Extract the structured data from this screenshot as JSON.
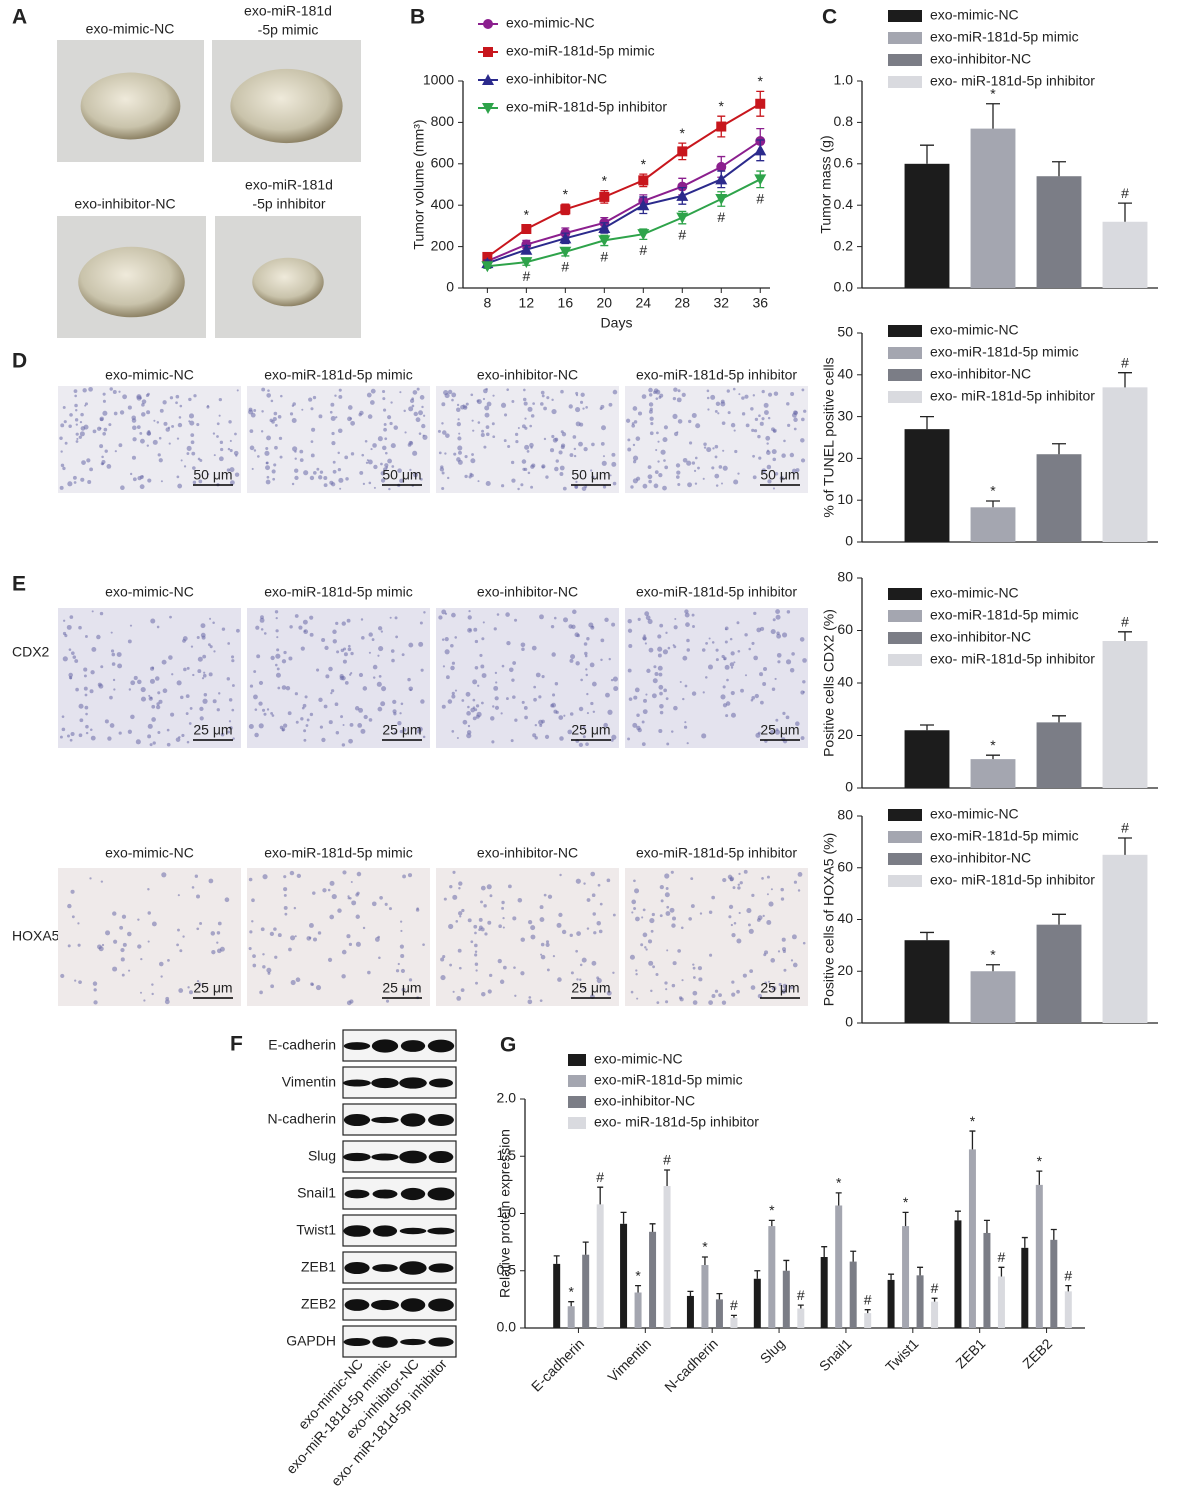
{
  "panels": {
    "labels": [
      "A",
      "B",
      "C",
      "D",
      "E",
      "F",
      "G"
    ]
  },
  "panel_a": {
    "captions": [
      [
        "exo-mimic-NC"
      ],
      [
        "exo-miR-181d",
        "-5p mimic"
      ],
      [
        "exo-inhibitor-NC"
      ],
      [
        "exo-miR-181d",
        "-5p inhibitor"
      ]
    ]
  },
  "panel_d": {
    "captions": [
      "exo-mimic-NC",
      "exo-miR-181d-5p mimic",
      "exo-inhibitor-NC",
      "exo-miR-181d-5p inhibitor"
    ],
    "scale_bars": [
      "50 μm",
      "50 μm",
      "50 μm",
      "50 μm"
    ]
  },
  "panel_e": {
    "rows": [
      {
        "label": "CDX2",
        "captions": [
          "exo-mimic-NC",
          "exo-miR-181d-5p mimic",
          "exo-inhibitor-NC",
          "exo-miR-181d-5p inhibitor"
        ],
        "scale_bars": [
          "25 μm",
          "25 μm",
          "25 μm",
          "25 μm"
        ]
      },
      {
        "label": "HOXA5",
        "captions": [
          "exo-mimic-NC",
          "exo-miR-181d-5p mimic",
          "exo-inhibitor-NC",
          "exo-miR-181d-5p inhibitor"
        ],
        "scale_bars": [
          "25 μm",
          "25 μm",
          "25 μm",
          "25 μm"
        ]
      }
    ]
  },
  "panel_f": {
    "proteins": [
      "E-cadherin",
      "Vimentin",
      "N-cadherin",
      "Slug",
      "Snail1",
      "Twist1",
      "ZEB1",
      "ZEB2",
      "GAPDH"
    ],
    "lanes": [
      "exo-mimic-NC",
      "exo-miR-181d-5p mimic",
      "exo-inhibitor-NC",
      "exo- miR-181d-5p inhibitor"
    ]
  },
  "chart_data": [
    {
      "type": "line",
      "x_label": "Days",
      "y_label": "Tumor volume (mm³)",
      "x": [
        8,
        12,
        16,
        20,
        24,
        28,
        32,
        36
      ],
      "xlim": [
        5.5,
        37
      ],
      "xticks": [
        8,
        12,
        16,
        20,
        24,
        28,
        32,
        36
      ],
      "ylim": [
        0,
        1000
      ],
      "yticks": [
        0,
        200,
        400,
        600,
        800,
        1000
      ],
      "series": [
        {
          "name": "exo-mimic-NC",
          "color": "#8b1f8e",
          "marker": "circle",
          "values": [
            130,
            210,
            265,
            315,
            420,
            490,
            585,
            710
          ],
          "errors": [
            15,
            20,
            25,
            25,
            30,
            40,
            50,
            60
          ]
        },
        {
          "name": "exo-miR-181d-5p mimic",
          "color": "#c8161d",
          "marker": "square",
          "values": [
            150,
            285,
            380,
            440,
            520,
            660,
            780,
            890
          ],
          "errors": [
            15,
            20,
            25,
            30,
            30,
            40,
            50,
            60
          ],
          "annotations": [
            null,
            "*",
            "*",
            "*",
            "*",
            "*",
            "*",
            "*"
          ],
          "annotation_position": "above"
        },
        {
          "name": "exo-inhibitor-NC",
          "color": "#2b2a8c",
          "marker": "triangle",
          "values": [
            120,
            185,
            240,
            290,
            400,
            445,
            525,
            665
          ],
          "errors": [
            15,
            20,
            25,
            25,
            40,
            40,
            40,
            50
          ]
        },
        {
          "name": "exo-miR-181d-5p inhibitor",
          "color": "#2ea34a",
          "marker": "triangle-down",
          "values": [
            105,
            125,
            175,
            230,
            260,
            340,
            430,
            525
          ],
          "errors": [
            10,
            15,
            20,
            25,
            25,
            30,
            35,
            40
          ],
          "annotations": [
            null,
            "#",
            "#",
            "#",
            "#",
            "#",
            "#",
            "#"
          ],
          "annotation_position": "below"
        }
      ]
    },
    {
      "type": "bar",
      "y_label": "Tumor mass (g)",
      "ylim": [
        0,
        1
      ],
      "yticks": [
        {
          "value": 0,
          "label": "0.0"
        },
        0.2,
        0.4,
        0.6,
        0.8,
        {
          "value": 1,
          "label": "1.0"
        }
      ],
      "series": [
        {
          "name": "exo-mimic-NC",
          "color": "#1c1c1c",
          "values": [
            0.6
          ],
          "errors": [
            0.09
          ]
        },
        {
          "name": "exo-miR-181d-5p mimic",
          "color": "#a4a6b0",
          "values": [
            0.77
          ],
          "errors": [
            0.12
          ],
          "annotations": [
            "*"
          ]
        },
        {
          "name": "exo-inhibitor-NC",
          "color": "#7b7d86",
          "values": [
            0.54
          ],
          "errors": [
            0.07
          ]
        },
        {
          "name": "exo- miR-181d-5p inhibitor",
          "color": "#d9dadf",
          "values": [
            0.32
          ],
          "errors": [
            0.09
          ],
          "annotations": [
            "#"
          ]
        }
      ]
    },
    {
      "type": "bar",
      "y_label": "% of TUNEL positive cells",
      "ylim": [
        0,
        50
      ],
      "yticks": [
        0,
        10,
        20,
        30,
        40,
        50
      ],
      "series": [
        {
          "name": "exo-mimic-NC",
          "color": "#1c1c1c",
          "values": [
            27
          ],
          "errors": [
            3
          ]
        },
        {
          "name": "exo-miR-181d-5p mimic",
          "color": "#a4a6b0",
          "values": [
            8.3
          ],
          "errors": [
            1.5
          ],
          "annotations": [
            "*"
          ]
        },
        {
          "name": "exo-inhibitor-NC",
          "color": "#7b7d86",
          "values": [
            21
          ],
          "errors": [
            2.5
          ]
        },
        {
          "name": "exo- miR-181d-5p inhibitor",
          "color": "#d9dadf",
          "values": [
            37
          ],
          "errors": [
            3.5
          ],
          "annotations": [
            "#"
          ]
        }
      ]
    },
    {
      "type": "bar",
      "y_label": "Positive cells CDX2 (%)",
      "ylim": [
        0,
        80
      ],
      "yticks": [
        0,
        20,
        40,
        60,
        80
      ],
      "series": [
        {
          "name": "exo-mimic-NC",
          "color": "#1c1c1c",
          "values": [
            22
          ],
          "errors": [
            2
          ]
        },
        {
          "name": "exo-miR-181d-5p mimic",
          "color": "#a4a6b0",
          "values": [
            11
          ],
          "errors": [
            1.5
          ],
          "annotations": [
            "*"
          ]
        },
        {
          "name": "exo-inhibitor-NC",
          "color": "#7b7d86",
          "values": [
            25
          ],
          "errors": [
            2.5
          ]
        },
        {
          "name": "exo- miR-181d-5p inhibitor",
          "color": "#d9dadf",
          "values": [
            56
          ],
          "errors": [
            3.5
          ],
          "annotations": [
            "#"
          ]
        }
      ]
    },
    {
      "type": "bar",
      "y_label": "Positive cells of HOXA5 (%)",
      "ylim": [
        0,
        80
      ],
      "yticks": [
        0,
        20,
        40,
        60,
        80
      ],
      "series": [
        {
          "name": "exo-mimic-NC",
          "color": "#1c1c1c",
          "values": [
            32
          ],
          "errors": [
            3
          ]
        },
        {
          "name": "exo-miR-181d-5p mimic",
          "color": "#a4a6b0",
          "values": [
            20
          ],
          "errors": [
            2.5
          ],
          "annotations": [
            "*"
          ]
        },
        {
          "name": "exo-inhibitor-NC",
          "color": "#7b7d86",
          "values": [
            38
          ],
          "errors": [
            4
          ]
        },
        {
          "name": "exo- miR-181d-5p inhibitor",
          "color": "#d9dadf",
          "values": [
            65
          ],
          "errors": [
            6.5
          ],
          "annotations": [
            "#"
          ]
        }
      ]
    },
    {
      "type": "bar",
      "y_label": "Relative protein expression",
      "categories": [
        "E-cadherin",
        "Vimentin",
        "N-cadherin",
        "Slug",
        "Snail1",
        "Twist1",
        "ZEB1",
        "ZEB2"
      ],
      "ylim": [
        0,
        2
      ],
      "yticks": [
        {
          "value": 0,
          "label": "0.0"
        },
        0.5,
        {
          "value": 1,
          "label": "1.0"
        },
        1.5,
        {
          "value": 2,
          "label": "2.0"
        }
      ],
      "series": [
        {
          "name": "exo-mimic-NC",
          "color": "#1c1c1c",
          "values": [
            0.56,
            0.91,
            0.28,
            0.43,
            0.62,
            0.42,
            0.94,
            0.7
          ],
          "errors": [
            0.07,
            0.1,
            0.04,
            0.07,
            0.09,
            0.05,
            0.08,
            0.09
          ]
        },
        {
          "name": "exo-miR-181d-5p mimic",
          "color": "#a4a6b0",
          "values": [
            0.19,
            0.31,
            0.55,
            0.89,
            1.07,
            0.89,
            1.56,
            1.25
          ],
          "errors": [
            0.04,
            0.06,
            0.07,
            0.05,
            0.11,
            0.12,
            0.16,
            0.12
          ],
          "annotations": [
            "*",
            "*",
            "*",
            "*",
            "*",
            "*",
            "*",
            "*"
          ]
        },
        {
          "name": "exo-inhibitor-NC",
          "color": "#7b7d86",
          "values": [
            0.64,
            0.84,
            0.25,
            0.5,
            0.58,
            0.46,
            0.83,
            0.77
          ],
          "errors": [
            0.11,
            0.07,
            0.05,
            0.09,
            0.09,
            0.07,
            0.11,
            0.09
          ]
        },
        {
          "name": "exo- miR-181d-5p inhibitor",
          "color": "#d9dadf",
          "values": [
            1.08,
            1.24,
            0.09,
            0.17,
            0.13,
            0.23,
            0.45,
            0.32
          ],
          "errors": [
            0.15,
            0.14,
            0.02,
            0.03,
            0.03,
            0.03,
            0.08,
            0.05
          ],
          "annotations": [
            "#",
            "#",
            "#",
            "#",
            "#",
            "#",
            "#",
            "#"
          ]
        }
      ]
    }
  ]
}
